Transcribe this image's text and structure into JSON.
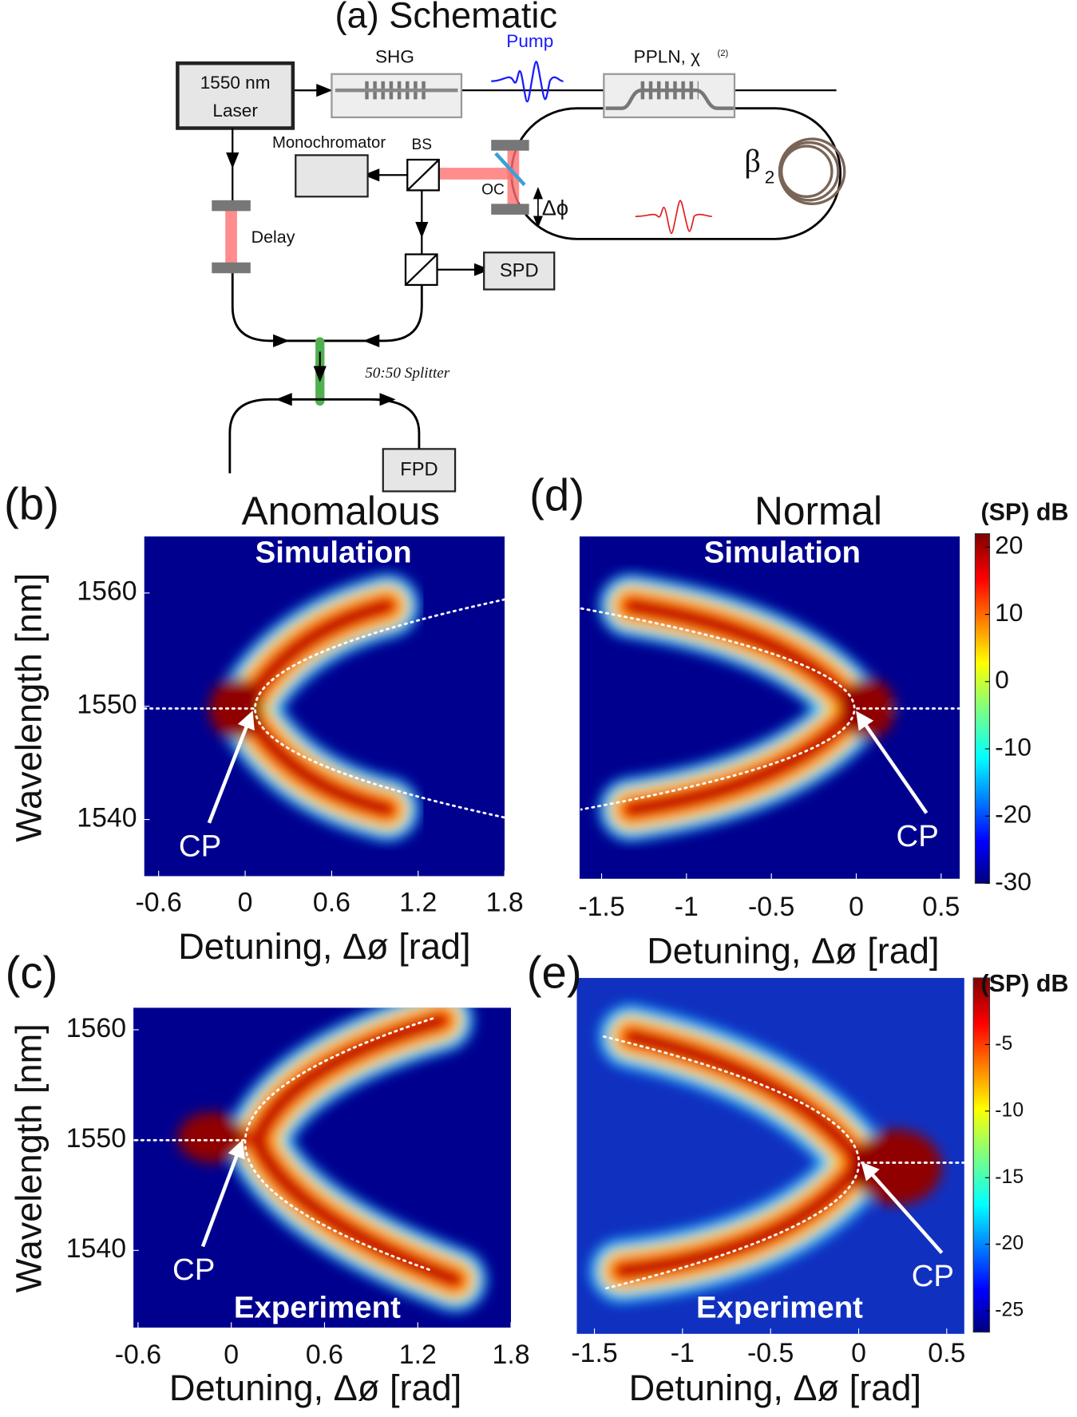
{
  "schematic": {
    "title": "(a) Schematic",
    "labels": {
      "laser_line1": "1550 nm",
      "laser_line2": "Laser",
      "shg": "SHG",
      "pump": "Pump",
      "ppln": "PPLN, χ",
      "ppln_superscript": "(2)",
      "monochromator": "Monochromator",
      "bs": "BS",
      "oc": "OC",
      "delta_phi": "Δϕ",
      "beta": "β",
      "beta_subscript": "2",
      "delay": "Delay",
      "spd": "SPD",
      "splitter": "50:50 Splitter",
      "fpd": "FPD"
    }
  },
  "panels": [
    {
      "label": "(b)",
      "title": "Anomalous",
      "annotation": "Simulation",
      "marker": "CP",
      "xlabel": "Detuning, Δø [rad]",
      "ylabel": "Wavelength [nm]",
      "xlim": [
        -0.7,
        1.8
      ],
      "xticks": [
        -0.6,
        0,
        0.6,
        1.2,
        1.8
      ],
      "ylim": [
        1535,
        1565
      ],
      "yticks": [
        1540,
        1550,
        1560
      ]
    },
    {
      "label": "(d)",
      "title": "Normal",
      "annotation": "Simulation",
      "marker": "CP",
      "xlabel": "Detuning, Δø [rad]",
      "xlim": [
        -1.63,
        0.61
      ],
      "xticks": [
        -1.5,
        -1,
        -0.5,
        0,
        0.5
      ]
    },
    {
      "label": "(c)",
      "annotation": "Experiment",
      "marker": "CP",
      "xlabel": "Detuning, Δø [rad]",
      "ylabel": "Wavelength [nm]",
      "xlim": [
        -0.63,
        1.8
      ],
      "xticks": [
        -0.6,
        0,
        0.6,
        1.2,
        1.8
      ],
      "ylim": [
        1533,
        1562
      ],
      "yticks": [
        1540,
        1550,
        1560
      ]
    },
    {
      "label": "(e)",
      "annotation": "Experiment",
      "marker": "CP",
      "xlabel": "Detuning, Δø [rad]",
      "xlim": [
        -1.6,
        0.6
      ],
      "xticks": [
        -1.5,
        -1,
        -0.5,
        0,
        0.5
      ]
    }
  ],
  "colorbars": [
    {
      "title": "(SP) dB",
      "lim": [
        -30,
        22
      ],
      "ticks": [
        20,
        10,
        0,
        -10,
        -20,
        -30
      ]
    },
    {
      "title": "(SP) dB",
      "lim": [
        -26.6,
        0
      ],
      "ticks": [
        -5,
        -10,
        -15,
        -20,
        -25
      ]
    }
  ]
}
